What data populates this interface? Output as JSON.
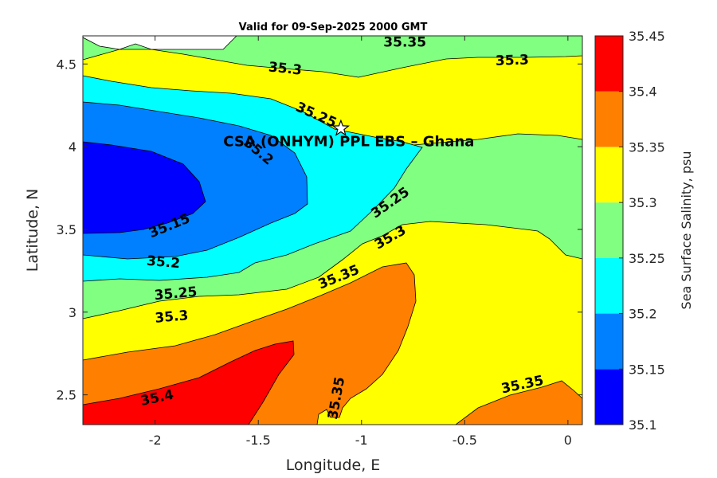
{
  "chart_data": {
    "type": "heatmap",
    "title": "Valid for 09-Sep-2025 2000 GMT",
    "xlabel": "Longitude, E",
    "ylabel": "Latitude, N",
    "xlim": [
      -2.35,
      0.07
    ],
    "ylim": [
      2.32,
      4.67
    ],
    "xticks": [
      "-2",
      "-1.5",
      "-1",
      "-0.5",
      "0"
    ],
    "xtick_values": [
      -2,
      -1.5,
      -1,
      -0.5,
      0
    ],
    "yticks": [
      "4.5",
      "4",
      "3.5",
      "3",
      "2.5"
    ],
    "ytick_values": [
      4.5,
      4,
      3.5,
      3,
      2.5
    ],
    "colorbar": {
      "label": "Sea Surface Salinity, psu",
      "ticks": [
        "35.45",
        "35.4",
        "35.35",
        "35.3",
        "35.25",
        "35.2",
        "35.15",
        "35.1"
      ],
      "levels": [
        35.1,
        35.15,
        35.2,
        35.25,
        35.3,
        35.35,
        35.4,
        35.45
      ],
      "colors": [
        "#0000ff",
        "#0080ff",
        "#00ffff",
        "#80ff80",
        "#ffff00",
        "#ff8000",
        "#ff0000"
      ]
    },
    "contour_labels": [
      {
        "text": "35.35",
        "lon": -0.79,
        "lat": 4.63,
        "angle": 0
      },
      {
        "text": "35.3",
        "lon": -1.37,
        "lat": 4.47,
        "angle": 6
      },
      {
        "text": "35.3",
        "lon": -0.27,
        "lat": 4.52,
        "angle": -2
      },
      {
        "text": "35.25",
        "lon": -1.22,
        "lat": 4.19,
        "angle": 24
      },
      {
        "text": "35.2",
        "lon": -1.5,
        "lat": 3.97,
        "angle": 40
      },
      {
        "text": "35.25",
        "lon": -0.86,
        "lat": 3.66,
        "angle": -35
      },
      {
        "text": "35.3",
        "lon": -0.86,
        "lat": 3.45,
        "angle": -30
      },
      {
        "text": "35.15",
        "lon": -1.93,
        "lat": 3.52,
        "angle": -22
      },
      {
        "text": "35.2",
        "lon": -1.96,
        "lat": 3.3,
        "angle": 5
      },
      {
        "text": "35.35",
        "lon": -1.11,
        "lat": 3.21,
        "angle": -22
      },
      {
        "text": "35.25",
        "lon": -1.9,
        "lat": 3.11,
        "angle": -5
      },
      {
        "text": "35.3",
        "lon": -1.92,
        "lat": 2.97,
        "angle": -5
      },
      {
        "text": "35.4",
        "lon": -1.99,
        "lat": 2.48,
        "angle": -12
      },
      {
        "text": "35.35",
        "lon": -1.12,
        "lat": 2.48,
        "angle": -80
      },
      {
        "text": "35.35",
        "lon": -0.22,
        "lat": 2.56,
        "angle": -12
      }
    ],
    "site": {
      "name": "CSA (ONHYM) PPL EBS  – Ghana",
      "lon": -1.1,
      "lat": 4.11
    }
  }
}
